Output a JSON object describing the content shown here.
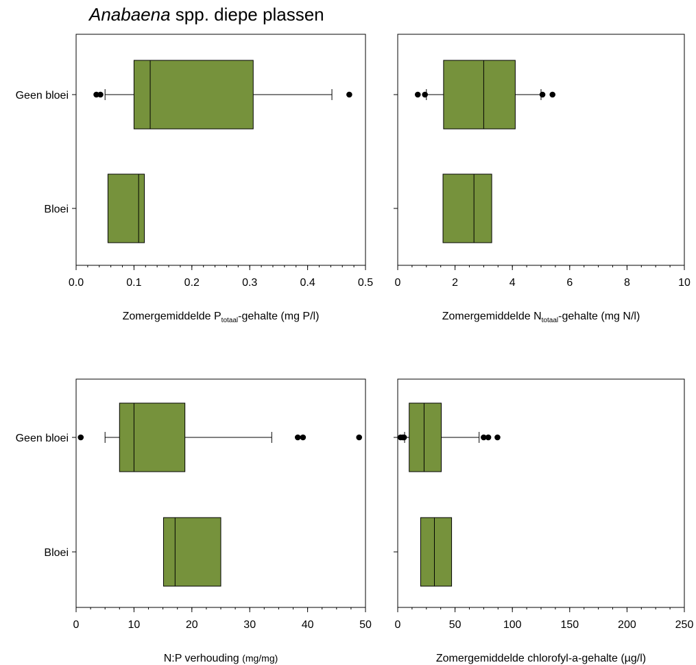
{
  "title": {
    "italic": "Anabaena",
    "rest": " spp.  diepe plassen"
  },
  "colors": {
    "box_fill": "#76923c",
    "stroke": "#000000"
  },
  "chart_data": [
    {
      "type": "boxplot",
      "id": "p",
      "xlabel_parts": [
        "Zomergemiddelde P",
        "totaal",
        "-gehalte (mg P/l)"
      ],
      "xlim": [
        0,
        0.5
      ],
      "major_ticks": [
        0,
        0.1,
        0.2,
        0.3,
        0.4,
        0.5
      ],
      "tick_labels": [
        "0.0",
        "0.1",
        "0.2",
        "0.3",
        "0.4",
        "0.5"
      ],
      "minor_step": 0.02,
      "show_category_labels": true,
      "boxes": [
        {
          "category": "Geen bloei",
          "q1": 0.1,
          "median": 0.128,
          "q3": 0.306,
          "whisker_low": 0.05,
          "whisker_high": 0.442,
          "outliers": [
            0.035,
            0.042,
            0.472
          ]
        },
        {
          "category": "Bloei",
          "q1": 0.055,
          "median": 0.108,
          "q3": 0.118,
          "whisker_low": null,
          "whisker_high": null,
          "outliers": []
        }
      ]
    },
    {
      "type": "boxplot",
      "id": "n",
      "xlabel_parts": [
        "Zomergemiddelde N",
        "totaal",
        "-gehalte (mg N/l)"
      ],
      "xlim": [
        0,
        10
      ],
      "major_ticks": [
        0,
        2,
        4,
        6,
        8,
        10
      ],
      "tick_labels": [
        "0",
        "2",
        "4",
        "6",
        "8",
        "10"
      ],
      "minor_step": 0.5,
      "show_category_labels": false,
      "boxes": [
        {
          "category": "Geen bloei",
          "q1": 1.6,
          "median": 3.0,
          "q3": 4.1,
          "whisker_low": 1.0,
          "whisker_high": 5.0,
          "outliers": [
            0.7,
            0.95,
            5.05,
            5.4
          ]
        },
        {
          "category": "Bloei",
          "q1": 1.58,
          "median": 2.66,
          "q3": 3.28,
          "whisker_low": null,
          "whisker_high": null,
          "outliers": []
        }
      ]
    },
    {
      "type": "boxplot",
      "id": "np",
      "xlabel_parts": [
        "N:P verhouding ",
        "(mg/mg)"
      ],
      "xlim": [
        0,
        50
      ],
      "major_ticks": [
        0,
        10,
        20,
        30,
        40,
        50
      ],
      "tick_labels": [
        "0",
        "10",
        "20",
        "30",
        "40",
        "50"
      ],
      "minor_step": 2.5,
      "show_category_labels": true,
      "boxes": [
        {
          "category": "Geen bloei",
          "q1": 7.5,
          "median": 10.0,
          "q3": 18.8,
          "whisker_low": 5.0,
          "whisker_high": 33.8,
          "outliers": [
            0.8,
            38.3,
            39.2,
            48.9
          ]
        },
        {
          "category": "Bloei",
          "q1": 15.1,
          "median": 17.1,
          "q3": 25.0,
          "whisker_low": null,
          "whisker_high": null,
          "outliers": []
        }
      ]
    },
    {
      "type": "boxplot",
      "id": "chl",
      "xlabel_parts": [
        "Zomergemiddelde chlorofyl-a-gehalte (µg/l)"
      ],
      "xlim": [
        0,
        250
      ],
      "major_ticks": [
        0,
        50,
        100,
        150,
        200,
        250
      ],
      "tick_labels": [
        "0",
        "50",
        "100",
        "150",
        "200",
        "250"
      ],
      "minor_step": 12.5,
      "show_category_labels": false,
      "boxes": [
        {
          "category": "Geen bloei",
          "q1": 10,
          "median": 23,
          "q3": 38,
          "whisker_low": 6,
          "whisker_high": 71,
          "outliers": [
            2.5,
            4.5,
            5.5,
            75,
            79,
            87
          ]
        },
        {
          "category": "Bloei",
          "q1": 20,
          "median": 32,
          "q3": 47,
          "whisker_low": null,
          "whisker_high": null,
          "outliers": []
        }
      ]
    }
  ]
}
